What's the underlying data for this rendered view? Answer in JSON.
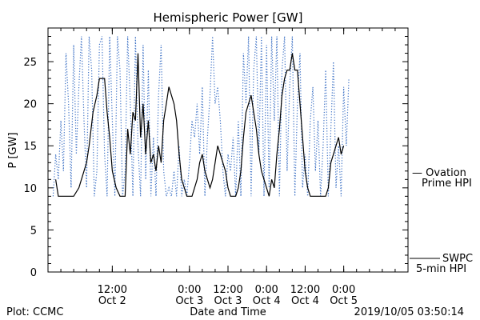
{
  "chart_data": {
    "type": "line",
    "title": "Hemispheric Power [GW]",
    "ylabel": "P [GW]",
    "xlabel": "Date and Time",
    "ylim": [
      0,
      29
    ],
    "yticks": [
      0,
      5,
      10,
      15,
      20,
      25
    ],
    "x_range_hours": [
      -17,
      11
    ],
    "xticks": [
      {
        "hour": -12,
        "time": "12:00",
        "date": "Oct 2"
      },
      {
        "hour": -6,
        "time": "0:00",
        "date": "Oct 3"
      },
      {
        "hour": -3,
        "time": "12:00",
        "date": "Oct 3"
      },
      {
        "hour": 0,
        "time": "0:00",
        "date": "Oct 4"
      },
      {
        "hour": 3,
        "time": "12:00",
        "date": "Oct 4"
      },
      {
        "hour": 6,
        "time": "0:00",
        "date": "Oct 5"
      }
    ],
    "series": [
      {
        "name": "SWPC 5-min HPI",
        "style": "solid",
        "color": "#000000",
        "points": [
          [
            -16.4,
            11
          ],
          [
            -16.2,
            9
          ],
          [
            -15.0,
            9
          ],
          [
            -14.6,
            10
          ],
          [
            -14.2,
            12
          ],
          [
            -14.0,
            13
          ],
          [
            -13.8,
            15
          ],
          [
            -13.5,
            19
          ],
          [
            -13.2,
            21
          ],
          [
            -13.0,
            23
          ],
          [
            -12.6,
            23
          ],
          [
            -12.4,
            19
          ],
          [
            -12.2,
            16
          ],
          [
            -12.0,
            12
          ],
          [
            -11.7,
            10
          ],
          [
            -11.4,
            9
          ],
          [
            -11.0,
            9
          ],
          [
            -10.8,
            17
          ],
          [
            -10.6,
            14
          ],
          [
            -10.4,
            19
          ],
          [
            -10.2,
            18
          ],
          [
            -10.0,
            26
          ],
          [
            -9.8,
            16
          ],
          [
            -9.6,
            20
          ],
          [
            -9.4,
            14
          ],
          [
            -9.2,
            18
          ],
          [
            -9.0,
            13
          ],
          [
            -8.8,
            14
          ],
          [
            -8.6,
            12
          ],
          [
            -8.4,
            15
          ],
          [
            -8.2,
            13
          ],
          [
            -8.0,
            18
          ],
          [
            -7.8,
            20
          ],
          [
            -7.6,
            22
          ],
          [
            -7.4,
            21
          ],
          [
            -7.2,
            20
          ],
          [
            -7.0,
            18
          ],
          [
            -6.8,
            14
          ],
          [
            -6.6,
            11
          ],
          [
            -6.4,
            10
          ],
          [
            -6.2,
            9
          ],
          [
            -5.8,
            9
          ],
          [
            -5.6,
            10
          ],
          [
            -5.4,
            11
          ],
          [
            -5.2,
            13
          ],
          [
            -5.0,
            14
          ],
          [
            -4.8,
            12
          ],
          [
            -4.6,
            11
          ],
          [
            -4.4,
            10
          ],
          [
            -4.2,
            11
          ],
          [
            -4.0,
            13
          ],
          [
            -3.8,
            15
          ],
          [
            -3.6,
            14
          ],
          [
            -3.4,
            13
          ],
          [
            -3.2,
            12
          ],
          [
            -3.0,
            10
          ],
          [
            -2.8,
            9
          ],
          [
            -2.4,
            9
          ],
          [
            -2.2,
            10
          ],
          [
            -2.0,
            12
          ],
          [
            -1.8,
            16
          ],
          [
            -1.6,
            19
          ],
          [
            -1.4,
            20
          ],
          [
            -1.2,
            21
          ],
          [
            -1.0,
            19
          ],
          [
            -0.8,
            17
          ],
          [
            -0.6,
            14
          ],
          [
            -0.4,
            12
          ],
          [
            -0.2,
            11
          ],
          [
            0.0,
            10
          ],
          [
            0.2,
            9
          ],
          [
            0.4,
            11
          ],
          [
            0.6,
            10
          ],
          [
            0.8,
            14
          ],
          [
            1.0,
            17
          ],
          [
            1.2,
            21
          ],
          [
            1.4,
            23
          ],
          [
            1.6,
            24
          ],
          [
            1.8,
            24
          ],
          [
            2.0,
            26
          ],
          [
            2.2,
            24
          ],
          [
            2.4,
            24
          ],
          [
            2.6,
            20
          ],
          [
            2.8,
            16
          ],
          [
            3.0,
            12
          ],
          [
            3.2,
            10
          ],
          [
            3.4,
            9
          ],
          [
            4.6,
            9
          ],
          [
            4.8,
            10
          ],
          [
            5.0,
            13
          ],
          [
            5.2,
            14
          ],
          [
            5.4,
            15
          ],
          [
            5.6,
            16
          ],
          [
            5.8,
            14
          ],
          [
            6.0,
            15
          ]
        ]
      },
      {
        "name": "Ovation Prime HPI",
        "style": "dotted",
        "color": "#3a6fc4",
        "points": [
          [
            -16.6,
            9
          ],
          [
            -16.4,
            14
          ],
          [
            -16.2,
            11
          ],
          [
            -16.0,
            18
          ],
          [
            -15.8,
            12
          ],
          [
            -15.6,
            26
          ],
          [
            -15.4,
            20
          ],
          [
            -15.2,
            10
          ],
          [
            -15.0,
            27
          ],
          [
            -14.8,
            14
          ],
          [
            -14.6,
            22
          ],
          [
            -14.4,
            28
          ],
          [
            -14.2,
            18
          ],
          [
            -14.0,
            10
          ],
          [
            -13.8,
            28
          ],
          [
            -13.6,
            24
          ],
          [
            -13.4,
            9
          ],
          [
            -13.2,
            12
          ],
          [
            -13.0,
            27
          ],
          [
            -12.8,
            28
          ],
          [
            -12.6,
            14
          ],
          [
            -12.4,
            9
          ],
          [
            -12.2,
            28
          ],
          [
            -12.0,
            18
          ],
          [
            -11.8,
            9
          ],
          [
            -11.6,
            28
          ],
          [
            -11.4,
            24
          ],
          [
            -11.2,
            9
          ],
          [
            -11.0,
            12
          ],
          [
            -10.8,
            28
          ],
          [
            -10.6,
            20
          ],
          [
            -10.4,
            9
          ],
          [
            -10.2,
            28
          ],
          [
            -10.0,
            15
          ],
          [
            -9.8,
            9
          ],
          [
            -9.6,
            27
          ],
          [
            -9.4,
            11
          ],
          [
            -9.2,
            24
          ],
          [
            -9.0,
            9
          ],
          [
            -8.8,
            16
          ],
          [
            -8.6,
            9
          ],
          [
            -8.4,
            21
          ],
          [
            -8.2,
            27
          ],
          [
            -8.0,
            12
          ],
          [
            -7.8,
            9
          ],
          [
            -7.6,
            10
          ],
          [
            -7.4,
            9
          ],
          [
            -7.2,
            12
          ],
          [
            -7.0,
            9
          ],
          [
            -6.8,
            15
          ],
          [
            -6.6,
            9
          ],
          [
            -6.4,
            11
          ],
          [
            -6.2,
            9
          ],
          [
            -6.0,
            13
          ],
          [
            -5.8,
            18
          ],
          [
            -5.6,
            16
          ],
          [
            -5.4,
            20
          ],
          [
            -5.2,
            14
          ],
          [
            -5.0,
            22
          ],
          [
            -4.8,
            9
          ],
          [
            -4.6,
            16
          ],
          [
            -4.4,
            21
          ],
          [
            -4.2,
            28
          ],
          [
            -4.0,
            20
          ],
          [
            -3.8,
            22
          ],
          [
            -3.6,
            18
          ],
          [
            -3.4,
            12
          ],
          [
            -3.2,
            9
          ],
          [
            -3.0,
            14
          ],
          [
            -2.8,
            12
          ],
          [
            -2.6,
            16
          ],
          [
            -2.4,
            9
          ],
          [
            -2.2,
            18
          ],
          [
            -2.0,
            9
          ],
          [
            -1.8,
            26
          ],
          [
            -1.6,
            20
          ],
          [
            -1.4,
            28
          ],
          [
            -1.2,
            9
          ],
          [
            -1.0,
            24
          ],
          [
            -0.8,
            28
          ],
          [
            -0.6,
            14
          ],
          [
            -0.4,
            28
          ],
          [
            -0.2,
            9
          ],
          [
            0.0,
            27
          ],
          [
            0.2,
            10
          ],
          [
            0.4,
            28
          ],
          [
            0.6,
            18
          ],
          [
            0.8,
            28
          ],
          [
            1.0,
            9
          ],
          [
            1.2,
            24
          ],
          [
            1.4,
            28
          ],
          [
            1.6,
            12
          ],
          [
            1.8,
            22
          ],
          [
            2.0,
            28
          ],
          [
            2.2,
            9
          ],
          [
            2.4,
            20
          ],
          [
            2.6,
            26
          ],
          [
            2.8,
            10
          ],
          [
            3.0,
            14
          ],
          [
            3.2,
            9
          ],
          [
            3.4,
            18
          ],
          [
            3.6,
            22
          ],
          [
            3.8,
            12
          ],
          [
            4.0,
            18
          ],
          [
            4.2,
            9
          ],
          [
            4.4,
            15
          ],
          [
            4.6,
            24
          ],
          [
            4.8,
            9
          ],
          [
            5.0,
            17
          ],
          [
            5.2,
            25
          ],
          [
            5.4,
            10
          ],
          [
            5.6,
            15
          ],
          [
            5.8,
            9
          ],
          [
            6.0,
            22
          ],
          [
            6.2,
            15
          ],
          [
            6.4,
            23
          ]
        ]
      }
    ],
    "legend": [
      {
        "text": "— Ovation",
        "line2": "Prime HPI",
        "color": "#3a6fc4"
      },
      {
        "text": "SWPC",
        "line2": "5-min HPI",
        "color": "#000000"
      }
    ]
  },
  "footer": {
    "left": "Plot: CCMC",
    "center": "Date and Time",
    "right": "2019/10/05 03:50:14"
  },
  "colors": {
    "ovation": "#3a6fc4",
    "swpc": "#000000"
  }
}
